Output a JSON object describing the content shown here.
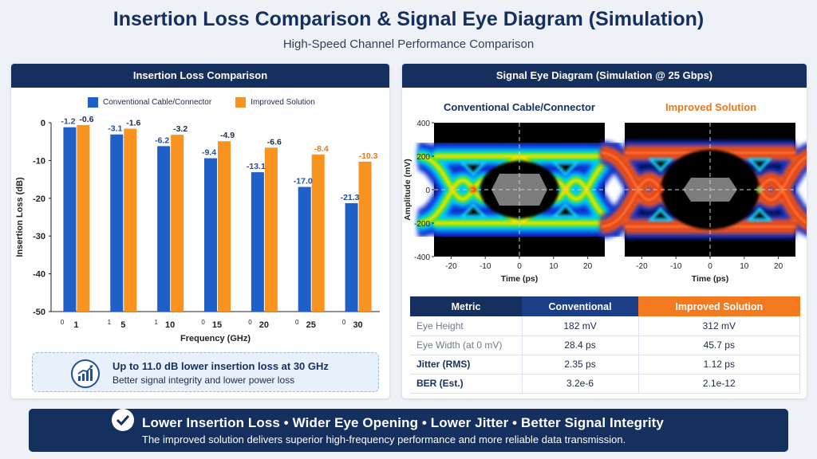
{
  "header": {
    "title": "Insertion Loss Comparison & Signal Eye Diagram (Simulation)",
    "subtitle": "High-Speed Channel Performance Comparison"
  },
  "colors": {
    "conventional": "#1e5fc8",
    "improved": "#f7931e",
    "navy": "#15305f",
    "improved_label": "#e07a1f",
    "conventional_label": "#1e4fa0"
  },
  "left_panel": {
    "heading": "Insertion Loss Comparison",
    "callout_main": "Up to 11.0 dB lower insertion loss at 30 GHz",
    "callout_sub": "Better signal integrity and lower power loss",
    "callout_icon": "trend-chart-icon"
  },
  "right_panel": {
    "heading": "Signal Eye Diagram (Simulation @ 25 Gbps)",
    "eye_left_title": "Conventional Cable/Connector",
    "eye_right_title": "Improved Solution"
  },
  "chart_data": [
    {
      "type": "bar",
      "categories": [
        "1",
        "5",
        "10",
        "15",
        "20",
        "25",
        "30"
      ],
      "series": [
        {
          "name": "Conventional Cable/Connector",
          "values": [
            -1.2,
            -3.1,
            -6.2,
            -9.4,
            -13.1,
            -17.0,
            -21.3
          ]
        },
        {
          "name": "Improved Solution",
          "values": [
            -0.6,
            -1.6,
            -3.2,
            -4.9,
            -6.6,
            -8.4,
            -10.3
          ]
        }
      ],
      "value_labels": {
        "conventional": [
          "-1.2",
          "-3.1",
          "-6.2",
          "-9.4",
          "-13.1",
          "-17.0",
          "-21.3"
        ],
        "improved": [
          "-0.6",
          "-1.6",
          "-3.2",
          "-4.9",
          "-6.6",
          "-8.4",
          "-10.3"
        ]
      },
      "xlabel": "Frequency (GHz)",
      "ylabel": "Insertion Loss (dB)",
      "ylim": [
        -50,
        0
      ],
      "yticks": [
        "0",
        "-10",
        "-20",
        "-30",
        "-40",
        "-50"
      ],
      "x_minor_labels": [
        "0",
        "1",
        "1",
        "0",
        "0",
        "0",
        "0"
      ],
      "legend": "top",
      "grid": false
    },
    {
      "type": "heatmap",
      "title": "Conventional Cable/Connector",
      "xlabel": "Time (ps)",
      "ylabel": "Amplitude (mV)",
      "xlim": [
        -25,
        25
      ],
      "ylim": [
        -400,
        400
      ],
      "xticks": [
        "-20",
        "-10",
        "0",
        "10",
        "20"
      ],
      "yticks": [
        "400",
        "200",
        "0",
        "-200",
        "-400"
      ],
      "eye_height_mv": 182,
      "eye_width_ps": 28.4
    },
    {
      "type": "heatmap",
      "title": "Improved Solution",
      "xlabel": "Time (ps)",
      "xlim": [
        -25,
        25
      ],
      "ylim": [
        -400,
        400
      ],
      "xticks": [
        "-20",
        "-10",
        "0",
        "10",
        "20"
      ],
      "eye_height_mv": 312,
      "eye_width_ps": 45.7
    },
    {
      "type": "table",
      "headers": [
        "Metric",
        "Conventional",
        "Improved Solution"
      ],
      "rows": [
        {
          "metric": "Eye Height",
          "conventional": "182 mV",
          "improved": "312 mV"
        },
        {
          "metric": "Eye Width (at 0 mV)",
          "conventional": "28.4 ps",
          "improved": "45.7 ps"
        },
        {
          "metric": "Jitter (RMS)",
          "conventional": "2.35 ps",
          "improved": "1.12 ps"
        },
        {
          "metric": "BER (Est.)",
          "conventional": "3.2e-6",
          "improved": "2.1e-12"
        }
      ]
    }
  ],
  "banner": {
    "main": "Lower Insertion Loss  •  Wider Eye Opening  •  Lower Jitter  •  Better Signal Integrity",
    "sub": "The improved solution delivers superior high-frequency performance and more reliable data transmission.",
    "icon": "check-circle-icon"
  }
}
